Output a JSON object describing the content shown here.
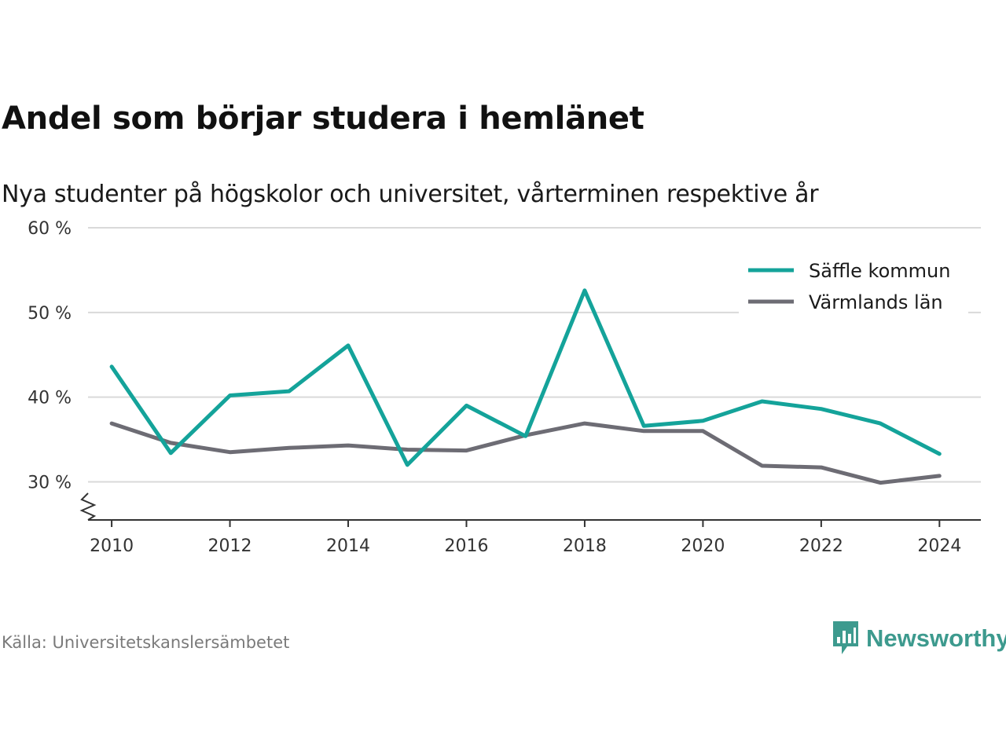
{
  "title": "Andel som börjar studera i hemlänet",
  "subtitle": "Nya studenter på högskolor och universitet, vårterminen respektive år",
  "source": "Källa: Universitetskanslersämbetet",
  "brand": {
    "name": "Newsworthy",
    "icon": "newsworthy-logo-icon",
    "color": "#3d9a8e"
  },
  "chart_data": {
    "type": "line",
    "x": [
      2010,
      2011,
      2012,
      2013,
      2014,
      2015,
      2016,
      2017,
      2018,
      2019,
      2020,
      2021,
      2022,
      2023,
      2024
    ],
    "series": [
      {
        "name": "Säffle kommun",
        "color": "#14a39a",
        "values": [
          43.6,
          33.4,
          40.2,
          40.7,
          46.1,
          32.0,
          39.0,
          35.4,
          52.6,
          36.6,
          37.2,
          39.5,
          38.6,
          36.9,
          33.3
        ]
      },
      {
        "name": "Värmlands län",
        "color": "#6d6c74",
        "values": [
          36.9,
          34.6,
          33.5,
          34.0,
          34.3,
          33.8,
          33.7,
          35.5,
          36.9,
          36.0,
          36.0,
          31.9,
          31.7,
          29.9,
          30.7
        ]
      }
    ],
    "xticks": [
      "2010",
      "2012",
      "2014",
      "2016",
      "2018",
      "2020",
      "2022",
      "2024"
    ],
    "yticks": [
      "30 %",
      "40 %",
      "50 %",
      "60 %"
    ],
    "ytick_values": [
      30,
      40,
      50,
      60
    ],
    "ylim": [
      25.5,
      60
    ],
    "xlim": [
      2009.6,
      2024.7
    ],
    "grid": true,
    "y_axis_break": true,
    "legend_position": "top-right",
    "xlabel": "",
    "ylabel": ""
  }
}
